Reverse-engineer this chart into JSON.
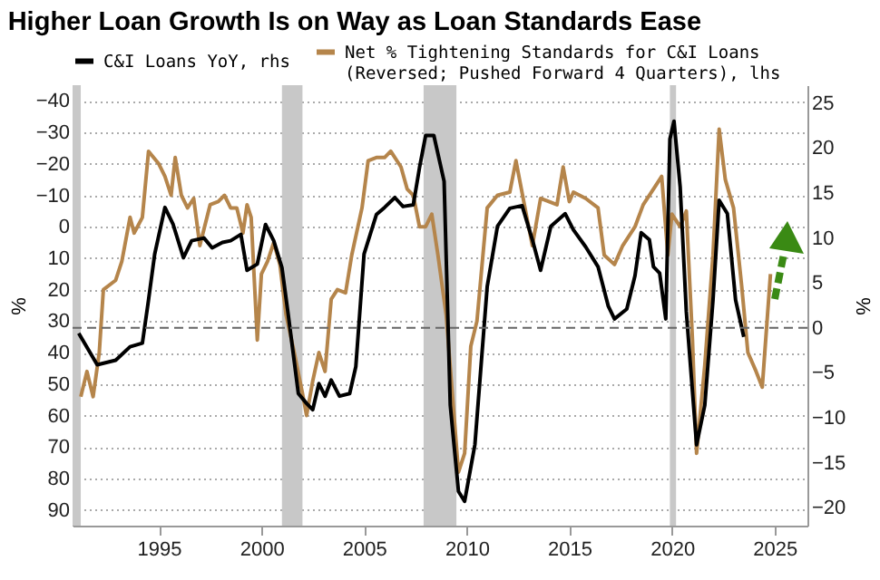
{
  "chart_data": {
    "type": "line",
    "title": "Higher Loan Growth Is on Way as Loan Standards Ease",
    "ylabel": "%",
    "y2label": "%",
    "xlim": [
      1990.8,
      2026.6
    ],
    "xticks": [
      1995,
      2000,
      2005,
      2010,
      2015,
      2020,
      2025
    ],
    "ylim": [
      95,
      -45
    ],
    "yticks": [
      -40,
      -30,
      -20,
      -10,
      0,
      10,
      20,
      30,
      40,
      50,
      60,
      70,
      80,
      90
    ],
    "y2lim": [
      -22,
      27
    ],
    "y2ticks": [
      -20,
      -15,
      -10,
      -5,
      0,
      5,
      10,
      15,
      20,
      25
    ],
    "grid": "y",
    "legend": "top",
    "line_style": "solid",
    "marker": "none",
    "bands": [
      {
        "axis": "x",
        "from": 1990.8,
        "to": 1991.2,
        "color": "#c8c8c8"
      },
      {
        "axis": "x",
        "from": 2001.0,
        "to": 2002.0,
        "color": "#c8c8c8"
      },
      {
        "axis": "x",
        "from": 2007.9,
        "to": 2009.5,
        "color": "#c8c8c8"
      },
      {
        "axis": "x",
        "from": 2019.9,
        "to": 2020.2,
        "color": "#c8c8c8"
      }
    ],
    "ref_lines": [
      {
        "axis": "y2",
        "value": 0,
        "color": "#666666",
        "line_style": "dashed"
      }
    ],
    "series": [
      {
        "name": "C&I Loans YoY, rhs",
        "color": "#000000",
        "axis": "y2",
        "x": [
          1991.1,
          1992.0,
          1992.9,
          1993.6,
          1994.2,
          1994.5,
          1994.8,
          1995.3,
          1995.7,
          1996.2,
          1996.6,
          1997.2,
          1997.6,
          1998.1,
          1998.5,
          1999.0,
          1999.3,
          1999.8,
          2000.2,
          2000.6,
          2001.0,
          2001.3,
          2001.8,
          2002.2,
          2002.5,
          2002.8,
          2003.1,
          2003.4,
          2003.8,
          2004.3,
          2004.6,
          2005.0,
          2005.6,
          2006.0,
          2006.5,
          2006.9,
          2007.4,
          2007.7,
          2008.0,
          2008.4,
          2008.9,
          2009.2,
          2009.6,
          2009.9,
          2010.4,
          2011.0,
          2011.5,
          2012.1,
          2012.7,
          2013.2,
          2013.6,
          2014.1,
          2014.8,
          2015.2,
          2015.8,
          2016.4,
          2016.9,
          2017.2,
          2017.8,
          2018.2,
          2018.5,
          2018.9,
          2019.1,
          2019.4,
          2019.7,
          2019.9,
          2020.1,
          2020.4,
          2020.7,
          2021.2,
          2021.6,
          2022.0,
          2022.3,
          2022.7,
          2023.1,
          2023.5
        ],
        "values": [
          -0.6,
          -4.1,
          -3.6,
          -2.1,
          -1.7,
          3.1,
          8.2,
          13.4,
          11.5,
          7.8,
          9.7,
          10.0,
          8.9,
          9.5,
          9.7,
          10.4,
          6.4,
          7.1,
          11.5,
          9.7,
          6.7,
          1.6,
          -7.3,
          -8.4,
          -9.1,
          -6.2,
          -7.6,
          -5.8,
          -7.6,
          -7.3,
          -4.3,
          8.2,
          12.6,
          13.4,
          14.5,
          13.5,
          13.7,
          17.8,
          21.4,
          21.4,
          16.3,
          -8.6,
          -18.2,
          -19.3,
          -13.0,
          4.6,
          11.3,
          13.3,
          13.6,
          9.8,
          6.4,
          11.3,
          12.7,
          10.9,
          9.0,
          6.8,
          2.4,
          1.0,
          2.1,
          5.8,
          10.6,
          9.8,
          6.8,
          6.1,
          1.0,
          21.0,
          23.0,
          15.7,
          1.8,
          -13.0,
          -8.6,
          3.1,
          14.2,
          12.7,
          3.1,
          -1.0
        ]
      },
      {
        "name": "Net % Tightening Standards for C&I Loans (Reversed; Pushed Forward 4 Quarters), lhs",
        "color": "#b5854b",
        "x": [
          1991.2,
          1991.5,
          1991.8,
          1992.1,
          1992.3,
          1992.9,
          1993.2,
          1993.6,
          1993.8,
          1994.2,
          1994.5,
          1995.0,
          1995.3,
          1995.6,
          1995.8,
          1996.1,
          1996.4,
          1996.7,
          1997.0,
          1997.5,
          1997.9,
          1998.2,
          1998.5,
          1998.8,
          1999.1,
          1999.3,
          1999.5,
          1999.8,
          2000.0,
          2000.3,
          2000.6,
          2000.9,
          2001.2,
          2001.6,
          2002.0,
          2002.2,
          2002.5,
          2002.8,
          2003.1,
          2003.4,
          2003.7,
          2004.1,
          2004.4,
          2004.9,
          2005.2,
          2005.6,
          2006.0,
          2006.3,
          2006.8,
          2007.1,
          2007.4,
          2007.7,
          2008.0,
          2008.3,
          2008.6,
          2009.0,
          2009.6,
          2009.9,
          2010.2,
          2010.5,
          2011.0,
          2011.5,
          2012.1,
          2012.4,
          2012.9,
          2013.2,
          2013.6,
          2014.4,
          2014.7,
          2015.0,
          2015.2,
          2015.8,
          2016.4,
          2016.7,
          2017.2,
          2017.6,
          2018.2,
          2018.6,
          2019.2,
          2019.5,
          2019.8,
          2020.0,
          2020.4,
          2020.7,
          2021.0,
          2021.2,
          2021.6,
          2022.0,
          2022.3,
          2022.6,
          2023.0,
          2023.4,
          2023.7,
          2024.1,
          2024.4,
          2024.8
        ],
        "values": [
          54,
          46,
          54,
          40,
          20,
          17,
          11,
          -3,
          2,
          -3,
          -24,
          -20,
          -16,
          -10,
          -22,
          -10,
          -6,
          -9,
          6,
          -7,
          -8,
          -10,
          -6,
          -6,
          2,
          -7,
          -3,
          36,
          15,
          11,
          5,
          12,
          28,
          40,
          53,
          60,
          49,
          40,
          46,
          23,
          20,
          21,
          9,
          -6,
          -21,
          -22,
          -22,
          -24,
          -19,
          -12,
          -10,
          0,
          0,
          -4,
          9,
          28,
          78,
          72,
          38,
          30,
          -6,
          -10,
          -11,
          -21,
          -4,
          6,
          -9,
          -7,
          -19,
          -8,
          -11,
          -9,
          -6,
          9,
          12,
          6,
          0,
          -7,
          -13,
          -16,
          9,
          -4,
          0,
          -5,
          36,
          72,
          44,
          9,
          -31,
          -15,
          -6,
          19,
          40,
          46,
          51,
          15
        ]
      }
    ]
  }
}
